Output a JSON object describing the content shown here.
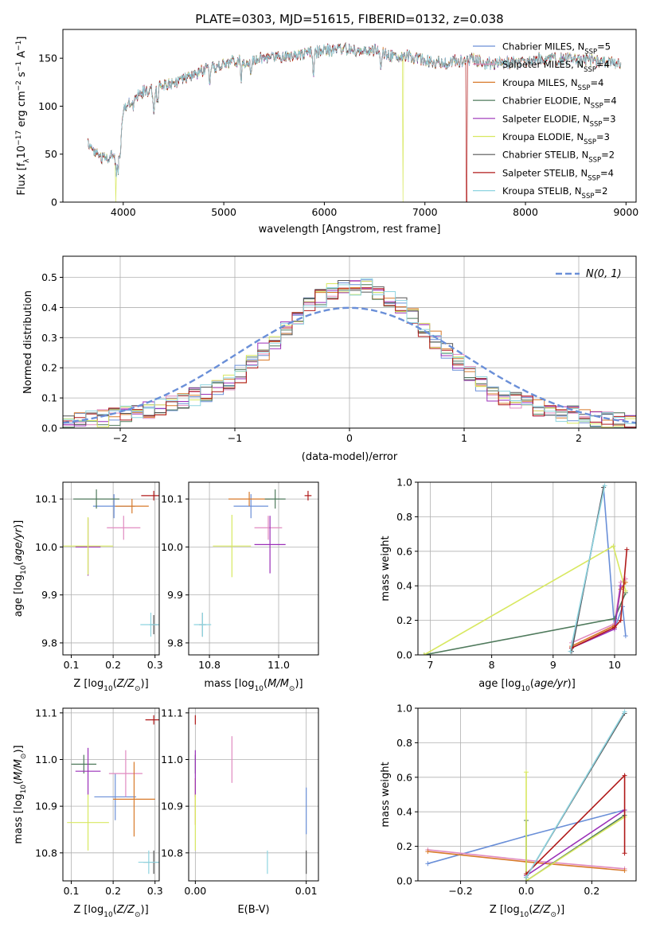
{
  "title": "PLATE=0303, MJD=51615, FIBERID=0132, z=0.038",
  "colors": {
    "Chabrier MILES": "#6a8fd8",
    "Salpeter MILES": "#e08ac0",
    "Kroupa MILES": "#d87a2a",
    "Chabrier ELODIE": "#4f7a5c",
    "Salpeter ELODIE": "#9a2fb8",
    "Kroupa ELODIE": "#d8e860",
    "Chabrier STELIB": "#555555",
    "Salpeter STELIB": "#b01a1a",
    "Kroupa STELIB": "#8ed4e0"
  },
  "chart_data": [
    {
      "id": "spectrum",
      "type": "line",
      "xlabel": "wavelength [Angstrom, rest frame]",
      "ylabel": "Flux [fλ10⁻¹⁷ erg cm⁻² s⁻¹ A⁻¹]",
      "xlim": [
        3400,
        9100
      ],
      "ylim": [
        0,
        180
      ],
      "xticks": [
        4000,
        5000,
        6000,
        7000,
        8000,
        9000
      ],
      "yticks": [
        0,
        50,
        100,
        150
      ],
      "legend_position": "right",
      "series": [
        {
          "name": "Chabrier MILES, N",
          "sub": "SSP",
          "tail": "=5"
        },
        {
          "name": "Salpeter MILES, N",
          "sub": "SSP",
          "tail": "=4"
        },
        {
          "name": "Kroupa MILES, N",
          "sub": "SSP",
          "tail": "=4"
        },
        {
          "name": "Chabrier ELODIE, N",
          "sub": "SSP",
          "tail": "=4"
        },
        {
          "name": "Salpeter ELODIE, N",
          "sub": "SSP",
          "tail": "=3"
        },
        {
          "name": "Kroupa ELODIE, N",
          "sub": "SSP",
          "tail": "=3"
        },
        {
          "name": "Chabrier STELIB, N",
          "sub": "SSP",
          "tail": "=2"
        },
        {
          "name": "Salpeter STELIB, N",
          "sub": "SSP",
          "tail": "=4"
        },
        {
          "name": "Kroupa STELIB, N",
          "sub": "SSP",
          "tail": "=2"
        }
      ],
      "continuum": {
        "x": [
          3650,
          3700,
          3800,
          3900,
          3950,
          4000,
          4100,
          4200,
          4300,
          4400,
          4500,
          4600,
          4700,
          4800,
          4900,
          5000,
          5100,
          5200,
          5300,
          5400,
          5500,
          5600,
          5700,
          5800,
          5900,
          6000,
          6100,
          6200,
          6300,
          6400,
          6500,
          6600,
          6700,
          6800,
          6900,
          7000,
          7100,
          7200,
          7300,
          7400,
          7500,
          7600,
          7700,
          7800,
          7900,
          8000,
          8200,
          8400,
          8600,
          8800,
          8950
        ],
        "y": [
          62,
          55,
          45,
          50,
          35,
          95,
          110,
          115,
          118,
          122,
          125,
          128,
          132,
          137,
          140,
          143,
          148,
          146,
          149,
          150,
          152,
          152,
          154,
          155,
          156,
          158,
          159,
          160,
          158,
          157,
          158,
          154,
          152,
          153,
          150,
          148,
          146,
          145,
          147,
          148,
          149,
          146,
          144,
          146,
          145,
          147,
          150,
          149,
          148,
          146,
          145
        ]
      },
      "absorption": [
        [
          3934,
          8
        ],
        [
          3969,
          8
        ],
        [
          4102,
          15
        ],
        [
          4304,
          25
        ],
        [
          4340,
          15
        ],
        [
          4861,
          18
        ],
        [
          5175,
          20
        ],
        [
          5270,
          12
        ],
        [
          5890,
          25
        ],
        [
          6563,
          15
        ],
        [
          6870,
          10
        ],
        [
          7600,
          8
        ]
      ],
      "dropouts": [
        {
          "series": "Kroupa ELODIE",
          "at": 3925
        },
        {
          "series": "Kroupa ELODIE",
          "at": 6780
        },
        {
          "series": "Salpeter STELIB",
          "at": 7415
        }
      ]
    },
    {
      "id": "residuals",
      "type": "histogram",
      "xlabel": "(data-model)/error",
      "ylabel": "Normed distribution",
      "xlim": [
        -2.5,
        2.5
      ],
      "ylim": [
        0,
        0.57
      ],
      "xticks": [
        -2,
        -1,
        0,
        1,
        2
      ],
      "yticks": [
        0.0,
        0.1,
        0.2,
        0.3,
        0.4,
        0.5
      ],
      "grid": true,
      "bin_width": 0.1,
      "reference_label": "N(0, 1)",
      "reference_color": "#6a8fd8",
      "legend_position": "top-right"
    },
    {
      "id": "age_vs_Z",
      "type": "errorbar",
      "xlabel": "Z [log10(Z/Z⊙)]",
      "ylabel": "age [log10(age/yr)]",
      "xlim": [
        0.08,
        0.31
      ],
      "ylim": [
        9.775,
        10.135
      ],
      "xticks": [
        0.1,
        0.2,
        0.3
      ],
      "yticks": [
        9.8,
        9.9,
        10.0,
        10.1
      ],
      "grid": true,
      "points": [
        {
          "series": "Chabrier MILES",
          "x": 0.202,
          "y": 10.085,
          "xerr": 0.05,
          "yerr": 0.025
        },
        {
          "series": "Salpeter MILES",
          "x": 0.225,
          "y": 10.04,
          "xerr": 0.04,
          "yerr": 0.025
        },
        {
          "series": "Kroupa MILES",
          "x": 0.245,
          "y": 10.085,
          "xerr": 0.04,
          "yerr": 0.015
        },
        {
          "series": "Chabrier ELODIE",
          "x": 0.16,
          "y": 10.1,
          "xerr": 0.055,
          "yerr": 0.02
        },
        {
          "series": "Salpeter ELODIE",
          "x": 0.14,
          "y": 10.0,
          "xerr": 0.03,
          "yerr": 0.06
        },
        {
          "series": "Kroupa ELODIE",
          "x": 0.14,
          "y": 10.002,
          "xerr": 0.06,
          "yerr": 0.06
        },
        {
          "series": "Chabrier STELIB",
          "x": 0.297,
          "y": 9.838,
          "xerr": 0.01,
          "yerr": 0.02
        },
        {
          "series": "Salpeter STELIB",
          "x": 0.297,
          "y": 10.107,
          "xerr": 0.03,
          "yerr": 0.01
        },
        {
          "series": "Kroupa STELIB",
          "x": 0.29,
          "y": 9.838,
          "xerr": 0.025,
          "yerr": 0.025
        }
      ]
    },
    {
      "id": "age_vs_mass",
      "type": "errorbar",
      "xlabel": "mass [log10(M/M⊙)]",
      "ylabel": "",
      "xlim": [
        10.74,
        11.115
      ],
      "ylim": [
        9.775,
        10.135
      ],
      "xticks": [
        10.8,
        11.0
      ],
      "yticks": [
        9.8,
        9.9,
        10.0,
        10.1
      ],
      "grid": true,
      "points": [
        {
          "series": "Chabrier MILES",
          "x": 10.92,
          "y": 10.085,
          "xerr": 0.05,
          "yerr": 0.025
        },
        {
          "series": "Salpeter MILES",
          "x": 10.97,
          "y": 10.04,
          "xerr": 0.04,
          "yerr": 0.025
        },
        {
          "series": "Kroupa MILES",
          "x": 10.915,
          "y": 10.1,
          "xerr": 0.06,
          "yerr": 0.015
        },
        {
          "series": "Chabrier ELODIE",
          "x": 10.99,
          "y": 10.1,
          "xerr": 0.03,
          "yerr": 0.02
        },
        {
          "series": "Salpeter ELODIE",
          "x": 10.975,
          "y": 10.005,
          "xerr": 0.045,
          "yerr": 0.06
        },
        {
          "series": "Kroupa ELODIE",
          "x": 10.865,
          "y": 10.002,
          "xerr": 0.055,
          "yerr": 0.065
        },
        {
          "series": "Chabrier STELIB",
          "x": 10.78,
          "y": 9.838,
          "xerr": 0.01,
          "yerr": 0.025
        },
        {
          "series": "Salpeter STELIB",
          "x": 11.085,
          "y": 10.107,
          "xerr": 0.01,
          "yerr": 0.01
        },
        {
          "series": "Kroupa STELIB",
          "x": 10.78,
          "y": 9.838,
          "xerr": 0.025,
          "yerr": 0.025
        }
      ]
    },
    {
      "id": "weight_vs_age",
      "type": "line",
      "xlabel": "age [log10(age/yr)]",
      "ylabel": "mass weight",
      "xlim": [
        6.8,
        10.35
      ],
      "ylim": [
        0,
        1.0
      ],
      "xticks": [
        7,
        8,
        9,
        10
      ],
      "yticks": [
        0.0,
        0.2,
        0.4,
        0.6,
        0.8,
        1.0
      ],
      "grid": true,
      "series": [
        {
          "name": "Chabrier MILES",
          "x": [
            9.3,
            9.82,
            10.0,
            10.13,
            10.18
          ],
          "y": [
            0.02,
            0.97,
            0.15,
            0.28,
            0.11
          ]
        },
        {
          "name": "Salpeter MILES",
          "x": [
            9.3,
            10.0,
            10.1,
            10.18
          ],
          "y": [
            0.07,
            0.18,
            0.42,
            0.44
          ]
        },
        {
          "name": "Kroupa MILES",
          "x": [
            9.3,
            10.0,
            10.1,
            10.18
          ],
          "y": [
            0.05,
            0.17,
            0.38,
            0.42
          ]
        },
        {
          "name": "Chabrier ELODIE",
          "x": [
            6.9,
            10.0,
            10.18
          ],
          "y": [
            0.0,
            0.21,
            0.36
          ]
        },
        {
          "name": "Salpeter ELODIE",
          "x": [
            9.3,
            10.0,
            10.1
          ],
          "y": [
            0.04,
            0.15,
            0.4
          ]
        },
        {
          "name": "Kroupa ELODIE",
          "x": [
            6.9,
            9.98,
            10.18
          ],
          "y": [
            0.0,
            0.63,
            0.37
          ]
        },
        {
          "name": "Chabrier STELIB",
          "x": [
            9.3,
            9.82
          ],
          "y": [
            0.02,
            0.97
          ]
        },
        {
          "name": "Salpeter STELIB",
          "x": [
            9.3,
            10.0,
            10.1,
            10.2
          ],
          "y": [
            0.04,
            0.16,
            0.2,
            0.61
          ]
        },
        {
          "name": "Kroupa STELIB",
          "x": [
            9.28,
            9.84
          ],
          "y": [
            0.02,
            0.98
          ]
        }
      ]
    },
    {
      "id": "mass_vs_Z",
      "type": "errorbar",
      "xlabel": "Z [log10(Z/Z⊙)]",
      "ylabel": "mass [log10(M/M⊙)]",
      "xlim": [
        0.08,
        0.31
      ],
      "ylim": [
        10.74,
        11.11
      ],
      "xticks": [
        0.1,
        0.2,
        0.3
      ],
      "yticks": [
        10.8,
        10.9,
        11.0,
        11.1
      ],
      "grid": true,
      "points": [
        {
          "series": "Chabrier MILES",
          "x": 0.205,
          "y": 10.92,
          "xerr": 0.05,
          "yerr": 0.05
        },
        {
          "series": "Salpeter MILES",
          "x": 0.23,
          "y": 10.97,
          "xerr": 0.04,
          "yerr": 0.05
        },
        {
          "series": "Kroupa MILES",
          "x": 0.25,
          "y": 10.915,
          "xerr": 0.05,
          "yerr": 0.08
        },
        {
          "series": "Chabrier ELODIE",
          "x": 0.13,
          "y": 10.99,
          "xerr": 0.03,
          "yerr": 0.02
        },
        {
          "series": "Salpeter ELODIE",
          "x": 0.14,
          "y": 10.975,
          "xerr": 0.03,
          "yerr": 0.05
        },
        {
          "series": "Kroupa ELODIE",
          "x": 0.14,
          "y": 10.865,
          "xerr": 0.05,
          "yerr": 0.06
        },
        {
          "series": "Chabrier STELIB",
          "x": 0.297,
          "y": 10.78,
          "xerr": 0.025,
          "yerr": 0.025
        },
        {
          "series": "Salpeter STELIB",
          "x": 0.297,
          "y": 11.085,
          "xerr": 0.02,
          "yerr": 0.01
        },
        {
          "series": "Kroupa STELIB",
          "x": 0.285,
          "y": 10.78,
          "xerr": 0.025,
          "yerr": 0.025
        }
      ]
    },
    {
      "id": "mass_vs_ebv",
      "type": "errorbar",
      "xlabel": "E(B-V)",
      "ylabel": "",
      "xlim": [
        -0.0006,
        0.0111
      ],
      "ylim": [
        10.74,
        11.11
      ],
      "xticks": [
        0.0,
        0.01
      ],
      "xtick_labels": [
        "0.00",
        "0.01"
      ],
      "yticks": [
        10.8,
        10.9,
        11.0,
        11.1
      ],
      "grid": true,
      "points": [
        {
          "series": "Chabrier MILES",
          "x": 0.01,
          "y": 10.89,
          "xerr": 0,
          "yerr": 0.05
        },
        {
          "series": "Salpeter MILES",
          "x": 0.0033,
          "y": 11.0,
          "xerr": 0,
          "yerr": 0.05
        },
        {
          "series": "Kroupa MILES",
          "x": 0.0,
          "y": 10.91,
          "xerr": 0,
          "yerr": 0.05
        },
        {
          "series": "Chabrier ELODIE",
          "x": 0.0,
          "y": 10.99,
          "xerr": 0,
          "yerr": 0.02
        },
        {
          "series": "Salpeter ELODIE",
          "x": 0.0,
          "y": 10.97,
          "xerr": 0,
          "yerr": 0.05
        },
        {
          "series": "Kroupa ELODIE",
          "x": 0.0,
          "y": 10.865,
          "xerr": 0,
          "yerr": 0.06
        },
        {
          "series": "Chabrier STELIB",
          "x": 0.01,
          "y": 10.78,
          "xerr": 0,
          "yerr": 0.025
        },
        {
          "series": "Salpeter STELIB",
          "x": 0.0,
          "y": 11.085,
          "xerr": 0,
          "yerr": 0.01
        },
        {
          "series": "Kroupa STELIB",
          "x": 0.0065,
          "y": 10.78,
          "xerr": 0,
          "yerr": 0.025
        }
      ]
    },
    {
      "id": "weight_vs_Z",
      "type": "line",
      "xlabel": "Z [log10(Z/Z⊙)]",
      "ylabel": "mass weight",
      "xlim": [
        -0.33,
        0.335
      ],
      "ylim": [
        0,
        1.0
      ],
      "xticks": [
        -0.2,
        0.0,
        0.2
      ],
      "yticks": [
        0.0,
        0.2,
        0.4,
        0.6,
        0.8,
        1.0
      ],
      "grid": true,
      "series": [
        {
          "name": "Chabrier MILES",
          "x": [
            -0.3,
            0.0,
            0.3
          ],
          "y": [
            0.1,
            0.26,
            0.41
          ]
        },
        {
          "name": "Salpeter MILES",
          "x": [
            -0.3,
            0.0,
            0.3
          ],
          "y": [
            0.18,
            0.12,
            0.07
          ]
        },
        {
          "name": "Kroupa MILES",
          "x": [
            -0.3,
            0.0,
            0.3
          ],
          "y": [
            0.17,
            0.11,
            0.06
          ]
        },
        {
          "name": "Chabrier ELODIE",
          "x": [
            0.0,
            0.0,
            0.3
          ],
          "y": [
            0.35,
            0.0,
            0.38
          ]
        },
        {
          "name": "Salpeter ELODIE",
          "x": [
            0.0,
            0.3
          ],
          "y": [
            0.03,
            0.41
          ]
        },
        {
          "name": "Kroupa ELODIE",
          "x": [
            0.0,
            0.0,
            0.3
          ],
          "y": [
            0.63,
            0.0,
            0.37
          ]
        },
        {
          "name": "Chabrier STELIB",
          "x": [
            0.0,
            0.3
          ],
          "y": [
            0.02,
            0.97
          ]
        },
        {
          "name": "Salpeter STELIB",
          "x": [
            0.0,
            0.3,
            0.3
          ],
          "y": [
            0.04,
            0.61,
            0.16
          ]
        },
        {
          "name": "Kroupa STELIB",
          "x": [
            0.0,
            0.3
          ],
          "y": [
            0.02,
            0.98
          ]
        }
      ]
    }
  ]
}
